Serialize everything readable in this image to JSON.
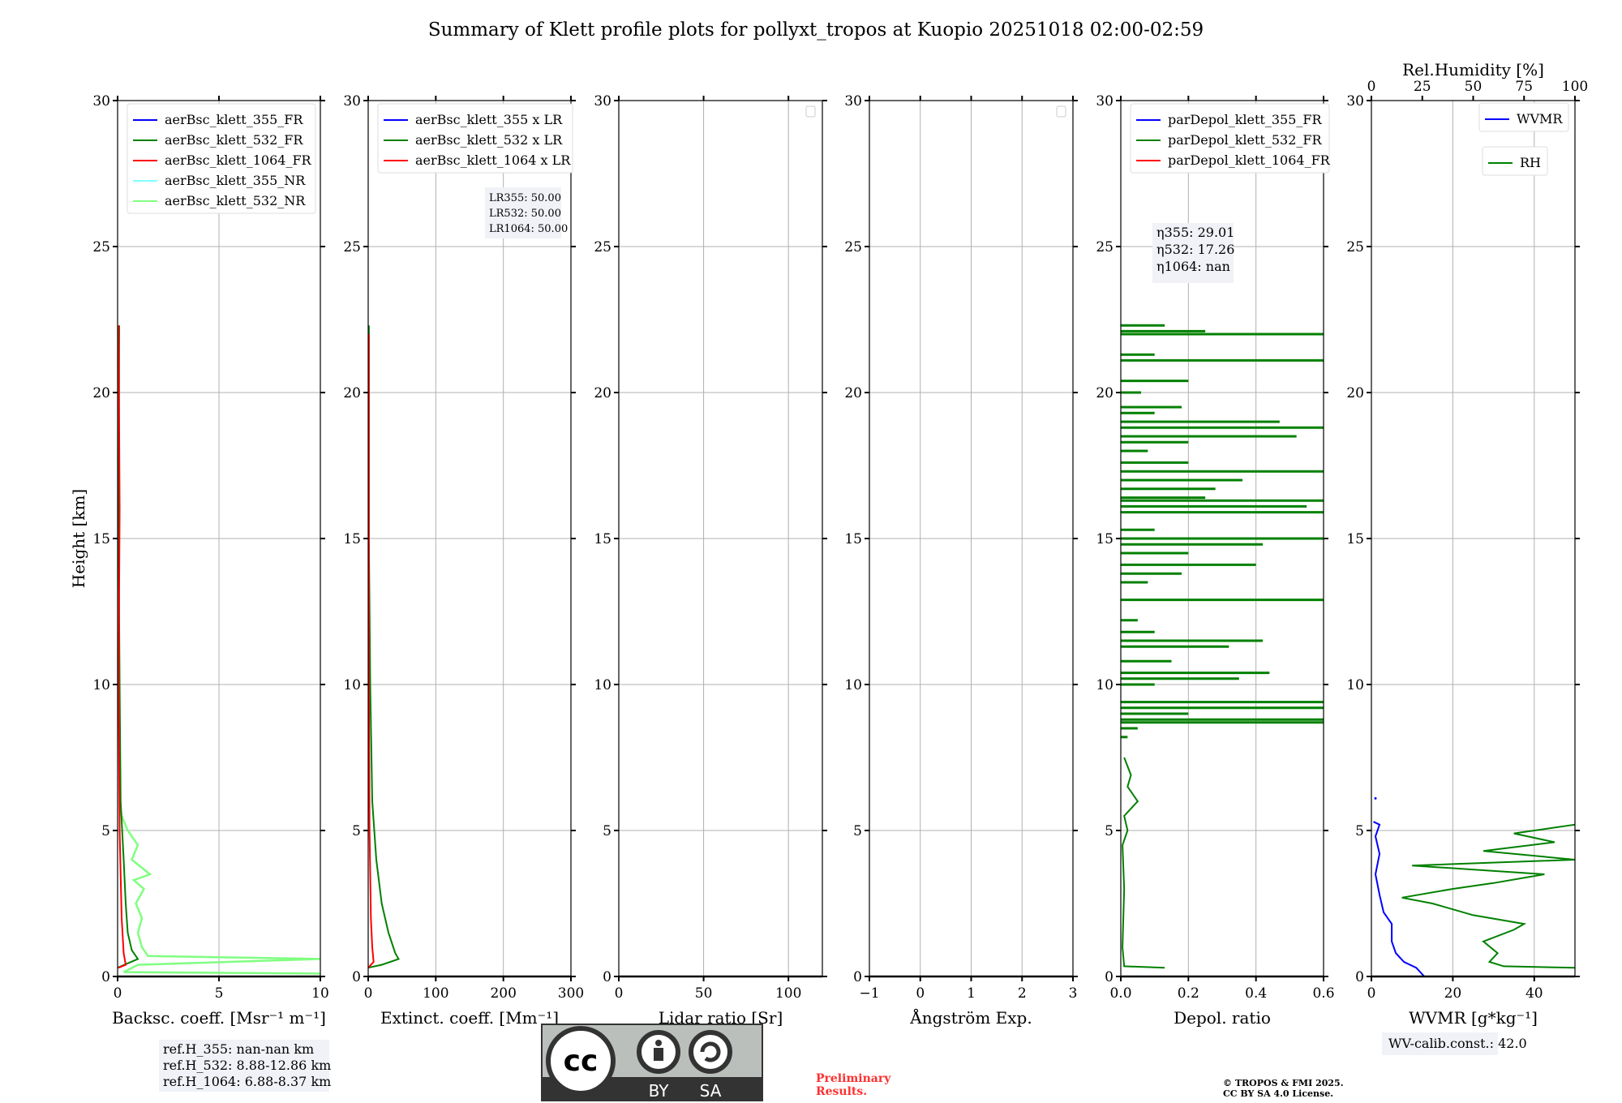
{
  "title": "Summary of Klett profile plots for pollyxt_tropos at Kuopio 20251018 02:00-02:59",
  "chart_data": [
    {
      "type": "line",
      "xlabel": "Backsc. coeff. [Msr⁻¹ m⁻¹]",
      "ylabel": "Height [km]",
      "xlim": [
        0,
        10
      ],
      "ylim": [
        0,
        30
      ],
      "xticks": [
        "0",
        "5",
        "10"
      ],
      "xtickvals": [
        0,
        5,
        10
      ],
      "yticks": [
        "0",
        "5",
        "10",
        "15",
        "20",
        "25",
        "30"
      ],
      "grid": true,
      "legend_position": "top-left",
      "legend": [
        {
          "name": "aerBsc_klett_355_FR",
          "color": "#0000ff"
        },
        {
          "name": "aerBsc_klett_532_FR",
          "color": "#008000"
        },
        {
          "name": "aerBsc_klett_1064_FR",
          "color": "#ff0000"
        },
        {
          "name": "aerBsc_klett_355_NR",
          "color": "#80ffff"
        },
        {
          "name": "aerBsc_klett_532_NR",
          "color": "#80ff80"
        }
      ],
      "series": [
        {
          "name": "aerBsc_klett_532_NR",
          "color": "#80ff80",
          "points": [
            [
              10,
              0.1
            ],
            [
              0.3,
              0.15
            ],
            [
              1.0,
              0.4
            ],
            [
              10,
              0.6
            ],
            [
              1.5,
              0.7
            ],
            [
              1.2,
              1.0
            ],
            [
              1.0,
              1.5
            ],
            [
              1.2,
              2.0
            ],
            [
              0.9,
              2.5
            ],
            [
              1.3,
              3.0
            ],
            [
              0.8,
              3.3
            ],
            [
              1.6,
              3.5
            ],
            [
              0.7,
              4.0
            ],
            [
              1.0,
              4.5
            ],
            [
              0.5,
              5.0
            ],
            [
              0.2,
              5.5
            ],
            [
              0.1,
              6.0
            ]
          ]
        },
        {
          "name": "aerBsc_klett_532_FR",
          "color": "#008000",
          "points": [
            [
              0,
              0.3
            ],
            [
              0.5,
              0.45
            ],
            [
              1.0,
              0.6
            ],
            [
              0.7,
              0.9
            ],
            [
              0.5,
              1.5
            ],
            [
              0.4,
              2.5
            ],
            [
              0.3,
              4
            ],
            [
              0.15,
              6
            ],
            [
              0.1,
              10
            ],
            [
              0.05,
              15
            ],
            [
              0.08,
              22.3
            ]
          ]
        },
        {
          "name": "aerBsc_klett_1064_FR",
          "color": "#ff0000",
          "points": [
            [
              0.05,
              0.3
            ],
            [
              0.4,
              0.4
            ],
            [
              0.3,
              0.8
            ],
            [
              0.2,
              2
            ],
            [
              0.1,
              5
            ],
            [
              0.05,
              10
            ],
            [
              0.1,
              16
            ],
            [
              0.05,
              22.3
            ]
          ]
        }
      ],
      "annotation": [
        "ref.H_355: nan-nan km",
        "ref.H_532: 8.88-12.86 km",
        "ref.H_1064: 6.88-8.37 km"
      ]
    },
    {
      "type": "line",
      "xlabel": "Extinct. coeff. [Mm⁻¹]",
      "xlim": [
        0,
        300
      ],
      "ylim": [
        0,
        30
      ],
      "xticks": [
        "0",
        "100",
        "200",
        "300"
      ],
      "xtickvals": [
        0,
        100,
        200,
        300
      ],
      "yticks": [
        "0",
        "5",
        "10",
        "15",
        "20",
        "25",
        "30"
      ],
      "grid": true,
      "legend_position": "top-left",
      "legend": [
        {
          "name": "aerBsc_klett_355 x LR",
          "color": "#0000ff"
        },
        {
          "name": "aerBsc_klett_532 x LR",
          "color": "#008000"
        },
        {
          "name": "aerBsc_klett_1064 x LR",
          "color": "#ff0000"
        }
      ],
      "series": [
        {
          "name": "aerBsc_klett_532 x LR",
          "color": "#008000",
          "points": [
            [
              0,
              0.3
            ],
            [
              20,
              0.4
            ],
            [
              45,
              0.6
            ],
            [
              40,
              0.8
            ],
            [
              30,
              1.5
            ],
            [
              20,
              2.5
            ],
            [
              12,
              4
            ],
            [
              6,
              6
            ],
            [
              3,
              10
            ],
            [
              1,
              15
            ],
            [
              1,
              22.3
            ]
          ]
        },
        {
          "name": "aerBsc_klett_1064 x LR",
          "color": "#ff0000",
          "points": [
            [
              0,
              0.3
            ],
            [
              8,
              0.5
            ],
            [
              6,
              1
            ],
            [
              4,
              2
            ],
            [
              2,
              5
            ],
            [
              1,
              10
            ],
            [
              1,
              22
            ]
          ]
        }
      ],
      "annotation": [
        "LR355: 50.00",
        "LR532: 50.00",
        "LR1064: 50.00"
      ]
    },
    {
      "type": "line",
      "xlabel": "Lidar ratio [Sr]",
      "xlim": [
        0,
        120
      ],
      "ylim": [
        0,
        30
      ],
      "xticks": [
        "0",
        "50",
        "100"
      ],
      "xtickvals": [
        0,
        50,
        100
      ],
      "yticks": [
        "0",
        "5",
        "10",
        "15",
        "20",
        "25",
        "30"
      ],
      "grid": true,
      "series": []
    },
    {
      "type": "line",
      "xlabel": "Ångström Exp.",
      "xlim": [
        -1,
        3
      ],
      "ylim": [
        0,
        30
      ],
      "xticks": [
        "−1",
        "0",
        "1",
        "2",
        "3"
      ],
      "xtickvals": [
        -1,
        0,
        1,
        2,
        3
      ],
      "yticks": [
        "0",
        "5",
        "10",
        "15",
        "20",
        "25",
        "30"
      ],
      "grid": true,
      "series": []
    },
    {
      "type": "line",
      "xlabel": "Depol. ratio",
      "xlim": [
        0,
        0.6
      ],
      "ylim": [
        0,
        30
      ],
      "xticks": [
        "0.0",
        "0.2",
        "0.4",
        "0.6"
      ],
      "xtickvals": [
        0,
        0.2,
        0.4,
        0.6
      ],
      "yticks": [
        "0",
        "5",
        "10",
        "15",
        "20",
        "25",
        "30"
      ],
      "grid": true,
      "legend_position": "top-left",
      "legend": [
        {
          "name": "parDepol_klett_355_FR",
          "color": "#0000ff"
        },
        {
          "name": "parDepol_klett_532_FR",
          "color": "#008000"
        },
        {
          "name": "parDepol_klett_1064_FR",
          "color": "#ff0000"
        }
      ],
      "series": [
        {
          "name": "parDepol_klett_532_FR",
          "color": "#008000",
          "points": [
            [
              0.13,
              0.3
            ],
            [
              0.01,
              0.35
            ],
            [
              0.005,
              1
            ],
            [
              0.01,
              3
            ],
            [
              0.005,
              4.5
            ],
            [
              0.02,
              5
            ],
            [
              0.01,
              5.5
            ],
            [
              0.05,
              6
            ],
            [
              0.02,
              6.5
            ],
            [
              0.03,
              6.9
            ],
            [
              0.01,
              7.5
            ]
          ]
        }
      ],
      "spikes": [
        [
          8.2,
          0.02
        ],
        [
          8.5,
          0.05
        ],
        [
          8.7,
          0.6
        ],
        [
          8.8,
          0.6
        ],
        [
          9.0,
          0.2
        ],
        [
          9.2,
          0.6
        ],
        [
          9.4,
          0.6
        ],
        [
          10.0,
          0.1
        ],
        [
          10.2,
          0.35
        ],
        [
          10.4,
          0.44
        ],
        [
          10.8,
          0.15
        ],
        [
          11.3,
          0.32
        ],
        [
          11.5,
          0.42
        ],
        [
          11.8,
          0.1
        ],
        [
          12.2,
          0.05
        ],
        [
          12.9,
          0.6
        ],
        [
          13.5,
          0.08
        ],
        [
          13.8,
          0.18
        ],
        [
          14.1,
          0.4
        ],
        [
          14.5,
          0.2
        ],
        [
          14.8,
          0.42
        ],
        [
          15.0,
          0.6
        ],
        [
          15.3,
          0.1
        ],
        [
          15.9,
          0.6
        ],
        [
          16.1,
          0.55
        ],
        [
          16.3,
          0.6
        ],
        [
          16.4,
          0.25
        ],
        [
          16.7,
          0.28
        ],
        [
          17.0,
          0.36
        ],
        [
          17.3,
          0.6
        ],
        [
          17.6,
          0.2
        ],
        [
          18.0,
          0.08
        ],
        [
          18.3,
          0.2
        ],
        [
          18.5,
          0.52
        ],
        [
          18.8,
          0.6
        ],
        [
          19.0,
          0.47
        ],
        [
          19.3,
          0.1
        ],
        [
          19.5,
          0.18
        ],
        [
          20.0,
          0.06
        ],
        [
          20.4,
          0.2
        ],
        [
          21.1,
          0.6
        ],
        [
          21.3,
          0.1
        ],
        [
          22.0,
          0.6
        ],
        [
          22.1,
          0.25
        ],
        [
          22.3,
          0.13
        ]
      ],
      "annotation": [
        "η355: 29.01",
        "η532: 17.26",
        "η1064: nan"
      ]
    },
    {
      "type": "line",
      "xlabel": "WVMR [g*kg⁻¹]",
      "xlim": [
        0,
        50
      ],
      "ylim": [
        0,
        30
      ],
      "xticks": [
        "0",
        "20",
        "40"
      ],
      "xtickvals": [
        0,
        20,
        40
      ],
      "yticks": [
        "0",
        "5",
        "10",
        "15",
        "20",
        "25",
        "30"
      ],
      "grid": true,
      "top_axis": {
        "label": "Rel.Humidity [%]",
        "xlim": [
          0,
          100
        ],
        "xticks": [
          "0",
          "25",
          "50",
          "75",
          "100"
        ],
        "xtickvals": [
          0,
          25,
          50,
          75,
          100
        ]
      },
      "legend": [
        {
          "name": "WVMR",
          "color": "#0000ff"
        }
      ],
      "legend2": [
        {
          "name": "RH",
          "color": "#008000"
        }
      ],
      "series": [
        {
          "name": "WVMR",
          "color": "#0000ff",
          "axis": "bottom",
          "points": [
            [
              13,
              0
            ],
            [
              11,
              0.3
            ],
            [
              8,
              0.5
            ],
            [
              6,
              0.8
            ],
            [
              5,
              1.2
            ],
            [
              5,
              1.8
            ],
            [
              3,
              2.2
            ],
            [
              2,
              2.8
            ],
            [
              1,
              3.5
            ],
            [
              2,
              4.2
            ],
            [
              1,
              4.8
            ],
            [
              2,
              5.2
            ],
            [
              0.5,
              5.3
            ]
          ]
        },
        {
          "name": "RH",
          "color": "#008000",
          "axis": "top",
          "points": [
            [
              100,
              0.3
            ],
            [
              65,
              0.35
            ],
            [
              58,
              0.5
            ],
            [
              62,
              0.8
            ],
            [
              55,
              1.2
            ],
            [
              70,
              1.6
            ],
            [
              75,
              1.8
            ],
            [
              50,
              2.1
            ],
            [
              30,
              2.5
            ],
            [
              15,
              2.7
            ],
            [
              40,
              3.0
            ],
            [
              60,
              3.2
            ],
            [
              85,
              3.5
            ],
            [
              20,
              3.8
            ],
            [
              100,
              4.0
            ],
            [
              55,
              4.3
            ],
            [
              90,
              4.6
            ],
            [
              70,
              4.9
            ],
            [
              100,
              5.2
            ]
          ]
        }
      ],
      "annotation": [
        "WV-calib.const.: 42.0"
      ]
    }
  ],
  "footer": {
    "license_by": "BY",
    "license_sa": "SA",
    "preliminary": [
      "Preliminary",
      "Results."
    ],
    "copyright": [
      "© TROPOS & FMI 2025.",
      "CC BY SA 4.0 License."
    ]
  }
}
